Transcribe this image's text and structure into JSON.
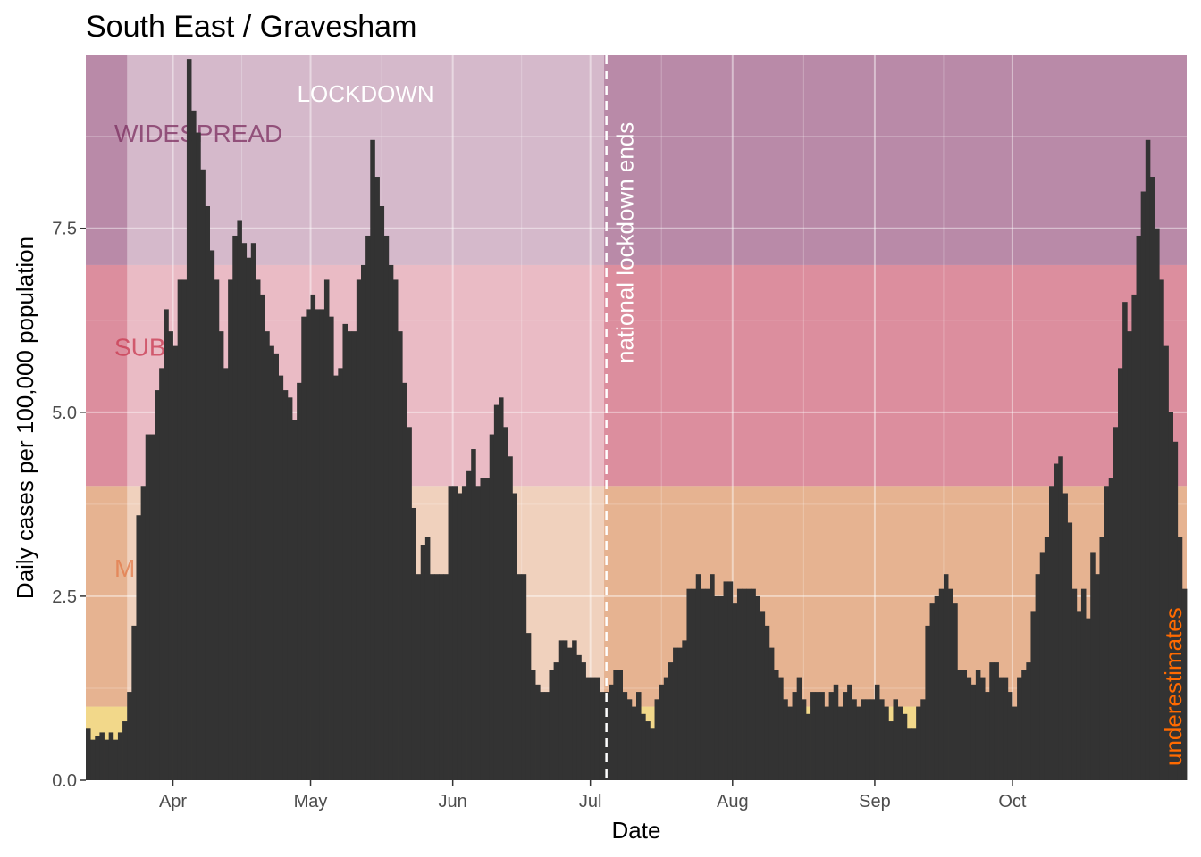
{
  "chart_data": {
    "type": "bar",
    "title": "South East / Gravesham",
    "xlabel": "Date",
    "ylabel": "Daily cases per 100,000 population",
    "ylim": [
      0,
      9.85
    ],
    "y_ticks": [
      {
        "value": 0.0,
        "label": "0.0"
      },
      {
        "value": 2.5,
        "label": "2.5"
      },
      {
        "value": 5.0,
        "label": "5.0"
      },
      {
        "value": 7.5,
        "label": "7.5"
      }
    ],
    "x_start": "2021-03-13",
    "x_ticks": [
      {
        "date": "2021-04-01",
        "label": "Apr"
      },
      {
        "date": "2021-05-01",
        "label": "May"
      },
      {
        "date": "2021-06-01",
        "label": "Jun"
      },
      {
        "date": "2021-07-01",
        "label": "Jul"
      },
      {
        "date": "2021-08-01",
        "label": "Aug"
      },
      {
        "date": "2021-09-01",
        "label": "Sep"
      },
      {
        "date": "2021-10-01",
        "label": "Oct"
      }
    ],
    "grid": true,
    "bar_color": "#333333",
    "zones": [
      {
        "label": "",
        "from": 0,
        "to": 1,
        "color": "#f2d88a"
      },
      {
        "label": "M",
        "from": 1,
        "to": 4,
        "color": "#e6b391",
        "text_color": "#e3794a"
      },
      {
        "label": "SUB",
        "from": 4,
        "to": 7,
        "color": "#dc8e9e",
        "text_color": "#c8384f"
      },
      {
        "label": "WIDESPREAD",
        "from": 7,
        "to": 9.85,
        "color": "#b98aa8",
        "text_color": "#7b2d5f"
      }
    ],
    "lockdown": {
      "label": "LOCKDOWN",
      "from": "2021-03-22",
      "to": "2021-07-04"
    },
    "vline": {
      "date": "2021-07-04",
      "label": "national lockdown ends"
    },
    "right_annotation": {
      "label": "underestimates",
      "color": "#ff6a00"
    },
    "values": [
      0.7,
      0.55,
      0.6,
      0.65,
      0.55,
      0.65,
      0.55,
      0.65,
      0.8,
      1.2,
      2.1,
      3.6,
      4.0,
      4.7,
      4.7,
      5.3,
      5.6,
      6.4,
      6.1,
      5.9,
      6.8,
      6.8,
      9.8,
      9.1,
      8.8,
      8.3,
      7.8,
      7.2,
      6.8,
      6.1,
      5.6,
      6.8,
      7.4,
      7.6,
      7.3,
      7.1,
      7.3,
      6.8,
      6.6,
      6.1,
      5.9,
      5.8,
      5.5,
      5.3,
      5.2,
      4.9,
      5.4,
      6.3,
      6.4,
      6.6,
      6.4,
      6.4,
      6.8,
      6.3,
      5.5,
      5.6,
      6.2,
      6.1,
      6.1,
      6.8,
      7.0,
      7.4,
      8.7,
      8.2,
      7.8,
      7.4,
      7.0,
      6.8,
      6.1,
      5.4,
      4.8,
      3.7,
      2.8,
      3.2,
      3.3,
      2.8,
      2.8,
      2.8,
      2.8,
      4.0,
      4.0,
      3.9,
      4.0,
      4.2,
      4.5,
      4.0,
      4.1,
      4.1,
      4.7,
      5.1,
      5.2,
      4.8,
      4.4,
      3.9,
      2.8,
      2.8,
      2.0,
      1.5,
      1.3,
      1.2,
      1.2,
      1.5,
      1.6,
      1.9,
      1.9,
      1.8,
      1.9,
      1.7,
      1.6,
      1.4,
      1.4,
      1.4,
      1.2,
      1.2,
      1.3,
      1.5,
      1.5,
      1.2,
      1.1,
      1.0,
      1.2,
      0.9,
      0.8,
      0.7,
      1.1,
      1.3,
      1.4,
      1.6,
      1.8,
      1.8,
      1.9,
      2.6,
      2.6,
      2.8,
      2.6,
      2.6,
      2.8,
      2.5,
      2.5,
      2.7,
      2.7,
      2.4,
      2.6,
      2.6,
      2.6,
      2.6,
      2.5,
      2.3,
      2.1,
      1.8,
      1.5,
      1.4,
      1.1,
      1.0,
      1.2,
      1.4,
      1.1,
      0.9,
      1.2,
      1.2,
      1.2,
      1.0,
      1.2,
      1.3,
      1.0,
      1.2,
      1.3,
      1.1,
      1.0,
      1.1,
      1.1,
      1.1,
      1.3,
      1.1,
      1.0,
      0.8,
      1.1,
      1.0,
      0.9,
      0.7,
      0.7,
      1.0,
      1.1,
      2.1,
      2.4,
      2.5,
      2.6,
      2.8,
      2.6,
      2.4,
      1.5,
      1.5,
      1.4,
      1.3,
      1.5,
      1.4,
      1.2,
      1.6,
      1.6,
      1.4,
      1.4,
      1.2,
      1.0,
      1.4,
      1.5,
      1.6,
      2.3,
      2.8,
      3.1,
      3.3,
      4.0,
      4.3,
      4.4,
      3.9,
      3.5,
      2.6,
      2.3,
      2.6,
      2.2,
      3.1,
      2.8,
      3.3,
      4.0,
      4.1,
      4.8,
      5.6,
      6.5,
      6.1,
      6.6,
      7.4,
      8.0,
      8.7,
      8.2,
      7.5,
      6.8,
      5.9,
      5.0,
      4.6,
      3.3,
      2.6
    ]
  }
}
